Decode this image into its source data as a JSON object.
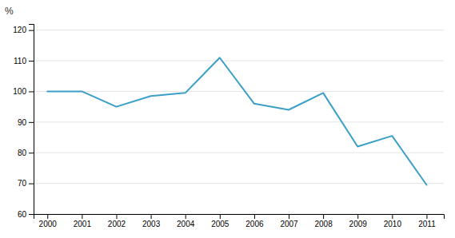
{
  "chart_data": {
    "type": "line",
    "ylabel": "%",
    "x": [
      2000,
      2001,
      2002,
      2003,
      2004,
      2005,
      2006,
      2007,
      2008,
      2009,
      2010,
      2011
    ],
    "values": [
      100,
      100,
      95,
      98.5,
      99.5,
      111,
      96,
      94,
      99.5,
      82,
      85.5,
      69.5
    ],
    "color": "#3b9fc8",
    "xlim": [
      1999.6,
      2011.5
    ],
    "xticks": [
      2000,
      2001,
      2002,
      2003,
      2004,
      2005,
      2006,
      2007,
      2008,
      2009,
      2010,
      2011
    ],
    "ylim": [
      60,
      122
    ],
    "yticks": [
      60,
      70,
      80,
      90,
      100,
      110,
      120
    ],
    "grid": true
  }
}
